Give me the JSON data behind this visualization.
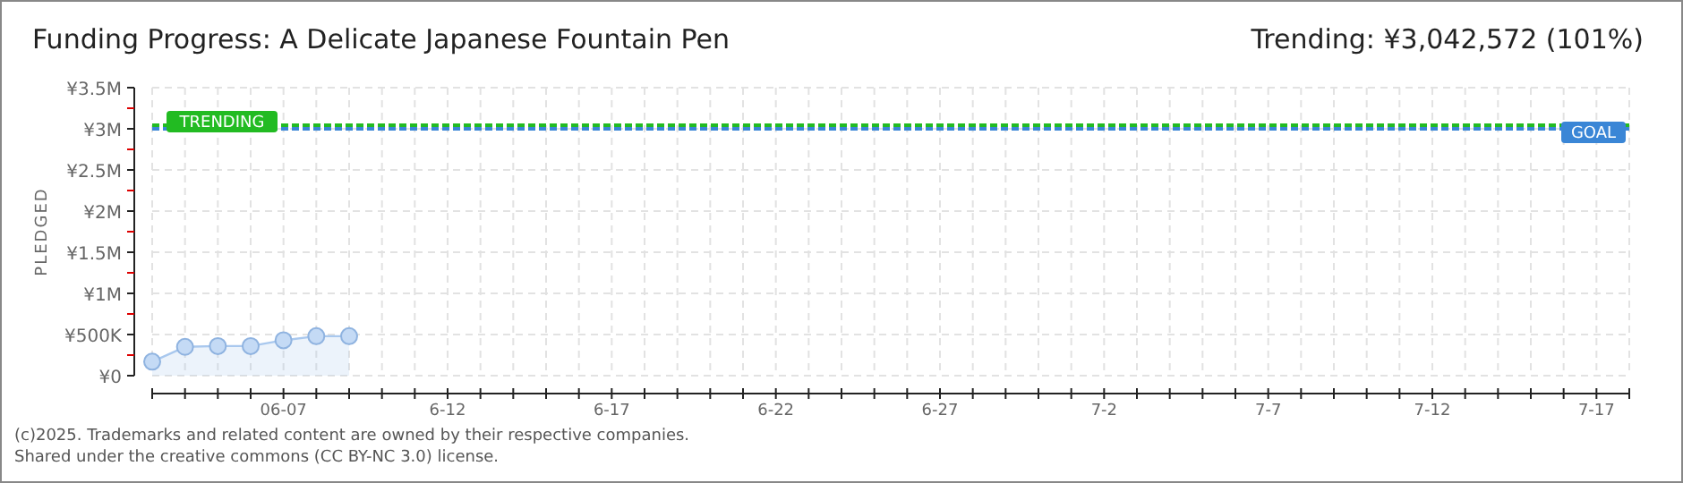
{
  "chart_data": {
    "type": "area",
    "title": "Funding Progress: A Delicate Japanese Fountain Pen",
    "subtitle": "Trending: ¥3,042,572 (101%)",
    "ylabel": "PLEDGED",
    "x": [
      "2025-06-03",
      "2025-06-04",
      "2025-06-05",
      "2025-06-06",
      "2025-06-07",
      "2025-06-08",
      "2025-06-09"
    ],
    "series": [
      {
        "color": "#a9c8ee",
        "values": [
          170000,
          350000,
          360000,
          360000,
          430000,
          480000,
          480000
        ]
      }
    ],
    "xlim": [
      "2025-06-03",
      "2025-07-18"
    ],
    "xticks": [
      {
        "value": "2025-06-03",
        "label": null
      },
      {
        "value": "2025-06-04",
        "label": null
      },
      {
        "value": "2025-06-05",
        "label": null
      },
      {
        "value": "2025-06-06",
        "label": null
      },
      {
        "value": "2025-06-07",
        "label": "06-07"
      },
      {
        "value": "2025-06-08",
        "label": null
      },
      {
        "value": "2025-06-09",
        "label": null
      },
      {
        "value": "2025-06-10",
        "label": null
      },
      {
        "value": "2025-06-11",
        "label": null
      },
      {
        "value": "2025-06-12",
        "label": "6-12"
      },
      {
        "value": "2025-06-13",
        "label": null
      },
      {
        "value": "2025-06-14",
        "label": null
      },
      {
        "value": "2025-06-15",
        "label": null
      },
      {
        "value": "2025-06-16",
        "label": null
      },
      {
        "value": "2025-06-17",
        "label": "6-17"
      },
      {
        "value": "2025-06-18",
        "label": null
      },
      {
        "value": "2025-06-19",
        "label": null
      },
      {
        "value": "2025-06-20",
        "label": null
      },
      {
        "value": "2025-06-21",
        "label": null
      },
      {
        "value": "2025-06-22",
        "label": "6-22"
      },
      {
        "value": "2025-06-23",
        "label": null
      },
      {
        "value": "2025-06-24",
        "label": null
      },
      {
        "value": "2025-06-25",
        "label": null
      },
      {
        "value": "2025-06-26",
        "label": null
      },
      {
        "value": "2025-06-27",
        "label": "6-27"
      },
      {
        "value": "2025-06-28",
        "label": null
      },
      {
        "value": "2025-06-29",
        "label": null
      },
      {
        "value": "2025-06-30",
        "label": null
      },
      {
        "value": "2025-07-01",
        "label": null
      },
      {
        "value": "2025-07-02",
        "label": "7-2"
      },
      {
        "value": "2025-07-03",
        "label": null
      },
      {
        "value": "2025-07-04",
        "label": null
      },
      {
        "value": "2025-07-05",
        "label": null
      },
      {
        "value": "2025-07-06",
        "label": null
      },
      {
        "value": "2025-07-07",
        "label": "7-7"
      },
      {
        "value": "2025-07-08",
        "label": null
      },
      {
        "value": "2025-07-09",
        "label": null
      },
      {
        "value": "2025-07-10",
        "label": null
      },
      {
        "value": "2025-07-11",
        "label": null
      },
      {
        "value": "2025-07-12",
        "label": "7-12"
      },
      {
        "value": "2025-07-13",
        "label": null
      },
      {
        "value": "2025-07-14",
        "label": null
      },
      {
        "value": "2025-07-15",
        "label": null
      },
      {
        "value": "2025-07-16",
        "label": null
      },
      {
        "value": "2025-07-17",
        "label": "7-17"
      },
      {
        "value": "2025-07-18",
        "label": null
      }
    ],
    "ylim": [
      0,
      3500000
    ],
    "yticks": [
      {
        "value": 0,
        "label": "¥0"
      },
      {
        "value": 250000,
        "label": null
      },
      {
        "value": 500000,
        "label": "¥500K"
      },
      {
        "value": 750000,
        "label": null
      },
      {
        "value": 1000000,
        "label": "¥1M"
      },
      {
        "value": 1250000,
        "label": null
      },
      {
        "value": 1500000,
        "label": "¥1.5M"
      },
      {
        "value": 1750000,
        "label": null
      },
      {
        "value": 2000000,
        "label": "¥2M"
      },
      {
        "value": 2250000,
        "label": null
      },
      {
        "value": 2500000,
        "label": "¥2.5M"
      },
      {
        "value": 2750000,
        "label": null
      },
      {
        "value": 3000000,
        "label": "¥3M"
      },
      {
        "value": 3250000,
        "label": null
      },
      {
        "value": 3500000,
        "label": "¥3.5M"
      }
    ],
    "ref_lines": [
      {
        "axis": "y",
        "value": 3042572,
        "label": "TRENDING",
        "color": "#22bb22",
        "line_style": "dashed"
      },
      {
        "axis": "y",
        "value": 3000000,
        "label": "GOAL",
        "color": "#3a86d6",
        "line_style": "dashed"
      }
    ],
    "annotations": [
      "(c)2025. Trademarks and related content are owned by their respective companies.",
      "Shared under the creative commons (CC BY-NC 3.0) license."
    ],
    "grid": true,
    "marker": "circle"
  }
}
